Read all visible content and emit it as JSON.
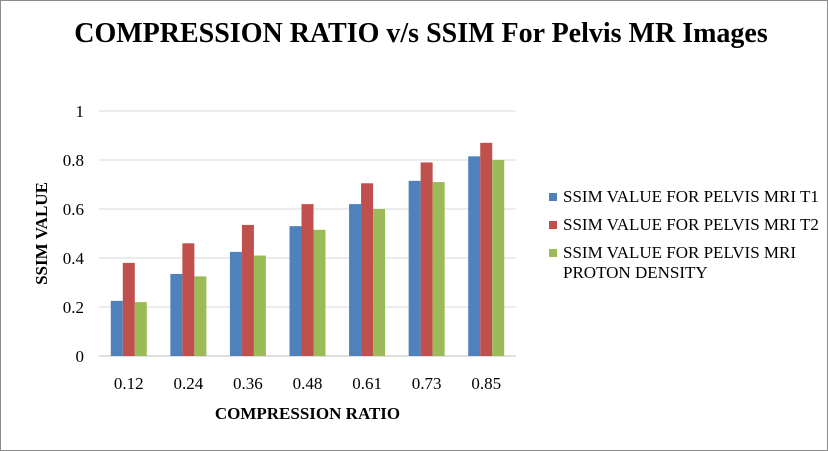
{
  "chart_data": {
    "type": "bar",
    "title": "COMPRESSION RATIO  v/s SSIM For Pelvis MR Images",
    "xlabel": "COMPRESSION RATIO",
    "ylabel": "SSIM VALUE",
    "categories": [
      "0.12",
      "0.24",
      "0.36",
      "0.48",
      "0.61",
      "0.73",
      "0.85"
    ],
    "ylim": [
      0,
      1
    ],
    "yticks": [
      "0",
      "0.2",
      "0.4",
      "0.6",
      "0.8",
      "1"
    ],
    "grid": true,
    "legend_position": "right",
    "series": [
      {
        "name": "SSIM VALUE FOR PELVIS MRI T1",
        "color": "#4f81bd",
        "values": [
          0.225,
          0.335,
          0.425,
          0.53,
          0.62,
          0.715,
          0.815
        ]
      },
      {
        "name": "SSIM VALUE FOR PELVIS MRI T2",
        "color": "#c0504d",
        "values": [
          0.38,
          0.46,
          0.535,
          0.62,
          0.705,
          0.79,
          0.87
        ]
      },
      {
        "name": "SSIM VALUE FOR PELVIS MRI PROTON DENSITY",
        "color": "#9bbb59",
        "values": [
          0.22,
          0.325,
          0.41,
          0.515,
          0.6,
          0.71,
          0.8
        ]
      }
    ]
  }
}
